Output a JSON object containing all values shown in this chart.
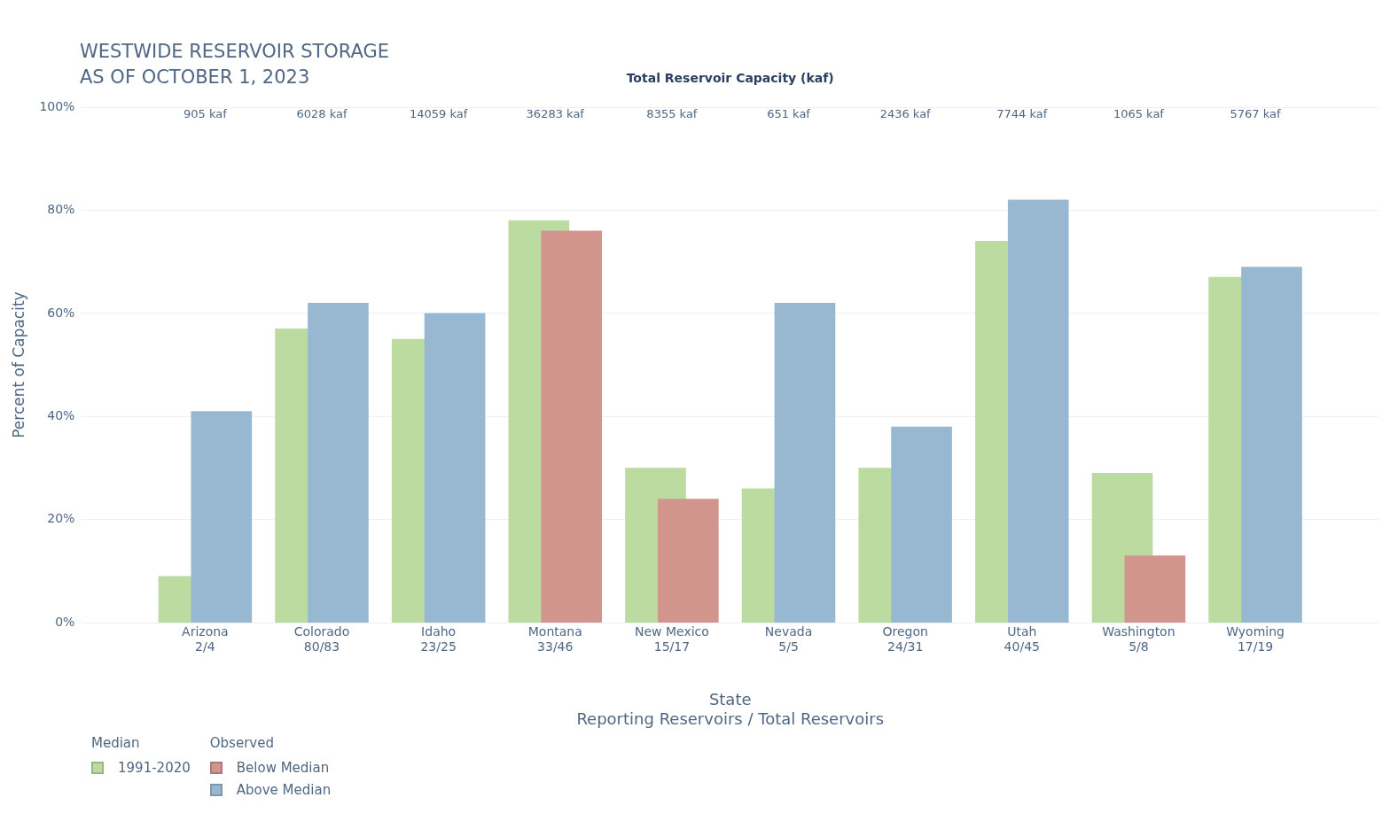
{
  "chart_data": {
    "type": "bar",
    "title": "WESTWIDE RESERVOIR STORAGE\nAS OF OCTOBER 1, 2023",
    "xlabel": "State\nReporting Reservoirs / Total Reservoirs",
    "ylabel": "Percent of Capacity",
    "x2label": "Total Reservoir Capacity (kaf)",
    "categories": [
      "Arizona\n2/4",
      "Colorado\n80/83",
      "Idaho\n23/25",
      "Montana\n33/46",
      "New Mexico\n15/17",
      "Nevada\n5/5",
      "Oregon\n24/31",
      "Utah\n40/45",
      "Washington\n5/8",
      "Wyoming\n17/19"
    ],
    "series": [
      {
        "name": "1991-2020",
        "color": "#bcdba0",
        "values": [
          9,
          57,
          55,
          78,
          30,
          26,
          30,
          74,
          29,
          67
        ]
      },
      {
        "name": "Below Median",
        "color": "#d1958d",
        "values": [
          null,
          null,
          null,
          76,
          24,
          null,
          null,
          null,
          13,
          null
        ]
      },
      {
        "name": "Above Median",
        "color": "#98b8d1",
        "values": [
          41,
          62,
          60,
          null,
          null,
          62,
          38,
          82,
          null,
          69
        ]
      }
    ],
    "ylim": [
      0,
      100
    ],
    "yticks": [
      {
        "value": 0,
        "label": "0%"
      },
      {
        "value": 20,
        "label": "20%"
      },
      {
        "value": 40,
        "label": "40%"
      },
      {
        "value": 60,
        "label": "60%"
      },
      {
        "value": 80,
        "label": "80%"
      },
      {
        "value": 100,
        "label": "100%"
      }
    ],
    "grid": "y",
    "legend": "bottom left",
    "annotations": [
      "Median",
      "Observed",
      "905 kaf",
      "6028 kaf",
      "14059 kaf",
      "36283 kaf",
      "8355 kaf",
      "651 kaf",
      "2436 kaf",
      "7744 kaf",
      "1065 kaf",
      "5767 kaf"
    ]
  }
}
